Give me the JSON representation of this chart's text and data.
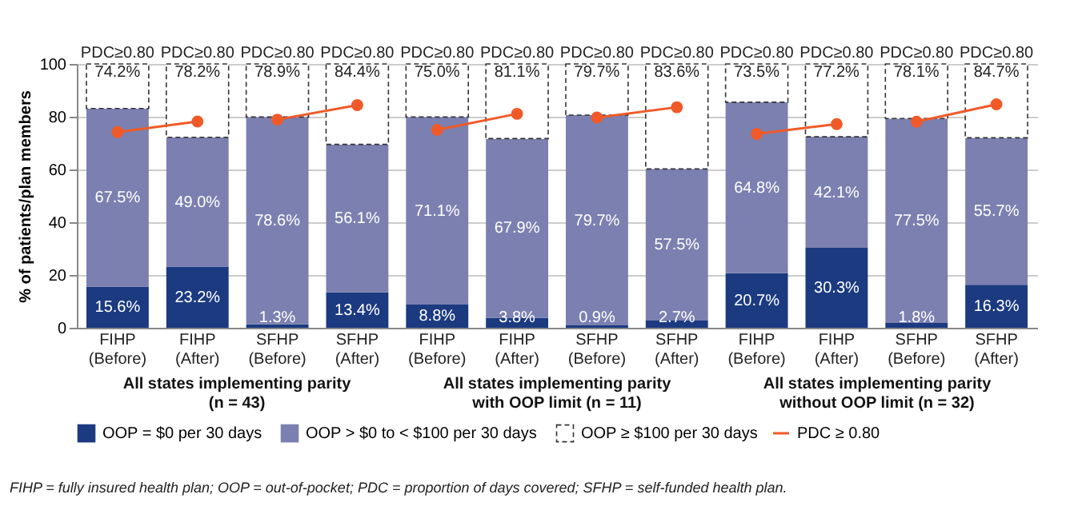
{
  "chart_data": {
    "type": "bar",
    "stacked": true,
    "ylabel": "% of patients/plan members",
    "categories": [
      "FIHP (Before)",
      "FIHP (After)",
      "SFHP (Before)",
      "SFHP (After)",
      "FIHP (Before)",
      "FIHP (After)",
      "SFHP (Before)",
      "SFHP (After)",
      "FIHP (Before)",
      "FIHP (After)",
      "SFHP (Before)",
      "SFHP (After)"
    ],
    "series": [
      {
        "name": "OOP = $0 per 30 days",
        "color": "#1b3a80",
        "values": [
          15.6,
          23.2,
          1.3,
          13.4,
          8.8,
          3.8,
          0.9,
          2.7,
          20.7,
          30.3,
          1.8,
          16.3
        ],
        "value_labels": [
          "15.6%",
          "23.2%",
          "1.3%",
          "13.4%",
          "8.8%",
          "3.8%",
          "0.9%",
          "2.7%",
          "20.7%",
          "30.3%",
          "1.8%",
          "16.3%"
        ]
      },
      {
        "name": "OOP > $0 to < $100 per 30 days",
        "color": "#7b80b0",
        "values": [
          67.5,
          49.0,
          78.6,
          56.1,
          71.1,
          67.9,
          79.7,
          57.5,
          64.8,
          42.1,
          77.5,
          55.7
        ],
        "value_labels": [
          "67.5%",
          "49.0%",
          "78.6%",
          "56.1%",
          "71.1%",
          "67.9%",
          "79.7%",
          "57.5%",
          "64.8%",
          "42.1%",
          "77.5%",
          "55.7%"
        ]
      },
      {
        "name": "OOP ≥ $100 per 30 days",
        "color": "#ffffff",
        "line_style": "dashed",
        "values": [
          16.9,
          27.8,
          20.1,
          30.5,
          20.1,
          28.3,
          19.4,
          39.8,
          14.5,
          27.6,
          20.7,
          28.0
        ]
      },
      {
        "name": "PDC ≥ 0.80",
        "type": "line",
        "color": "#f05a28",
        "marker": "circle",
        "values": [
          74.2,
          78.2,
          78.9,
          84.4,
          75.0,
          81.1,
          79.7,
          83.6,
          73.5,
          77.2,
          78.1,
          84.7
        ],
        "value_labels": [
          "PDC≥0.80\n74.2%",
          "PDC≥0.80\n78.2%",
          "PDC≥0.80\n78.9%",
          "PDC≥0.80\n84.4%",
          "PDC≥0.80\n75.0%",
          "PDC≥0.80\n81.1%",
          "PDC≥0.80\n79.7%",
          "PDC≥0.80\n83.6%",
          "PDC≥0.80\n73.5%",
          "PDC≥0.80\n77.2%",
          "PDC≥0.80\n78.1%",
          "PDC≥0.80\n84.7%"
        ]
      }
    ],
    "ylim": [
      0,
      100
    ],
    "yticks": [
      0,
      20,
      40,
      60,
      80,
      100
    ],
    "grid": "y",
    "legend": "bottom",
    "annotations": [
      "All states implementing parity\n(n = 43)",
      "All states implementing parity\nwith OOP limit (n = 11)",
      "All states implementing parity\nwithout OOP limit (n = 32)",
      "FIHP = fully insured health plan; OOP = out-of-pocket; PDC = proportion of days covered; SFHP = self-funded health plan."
    ]
  }
}
